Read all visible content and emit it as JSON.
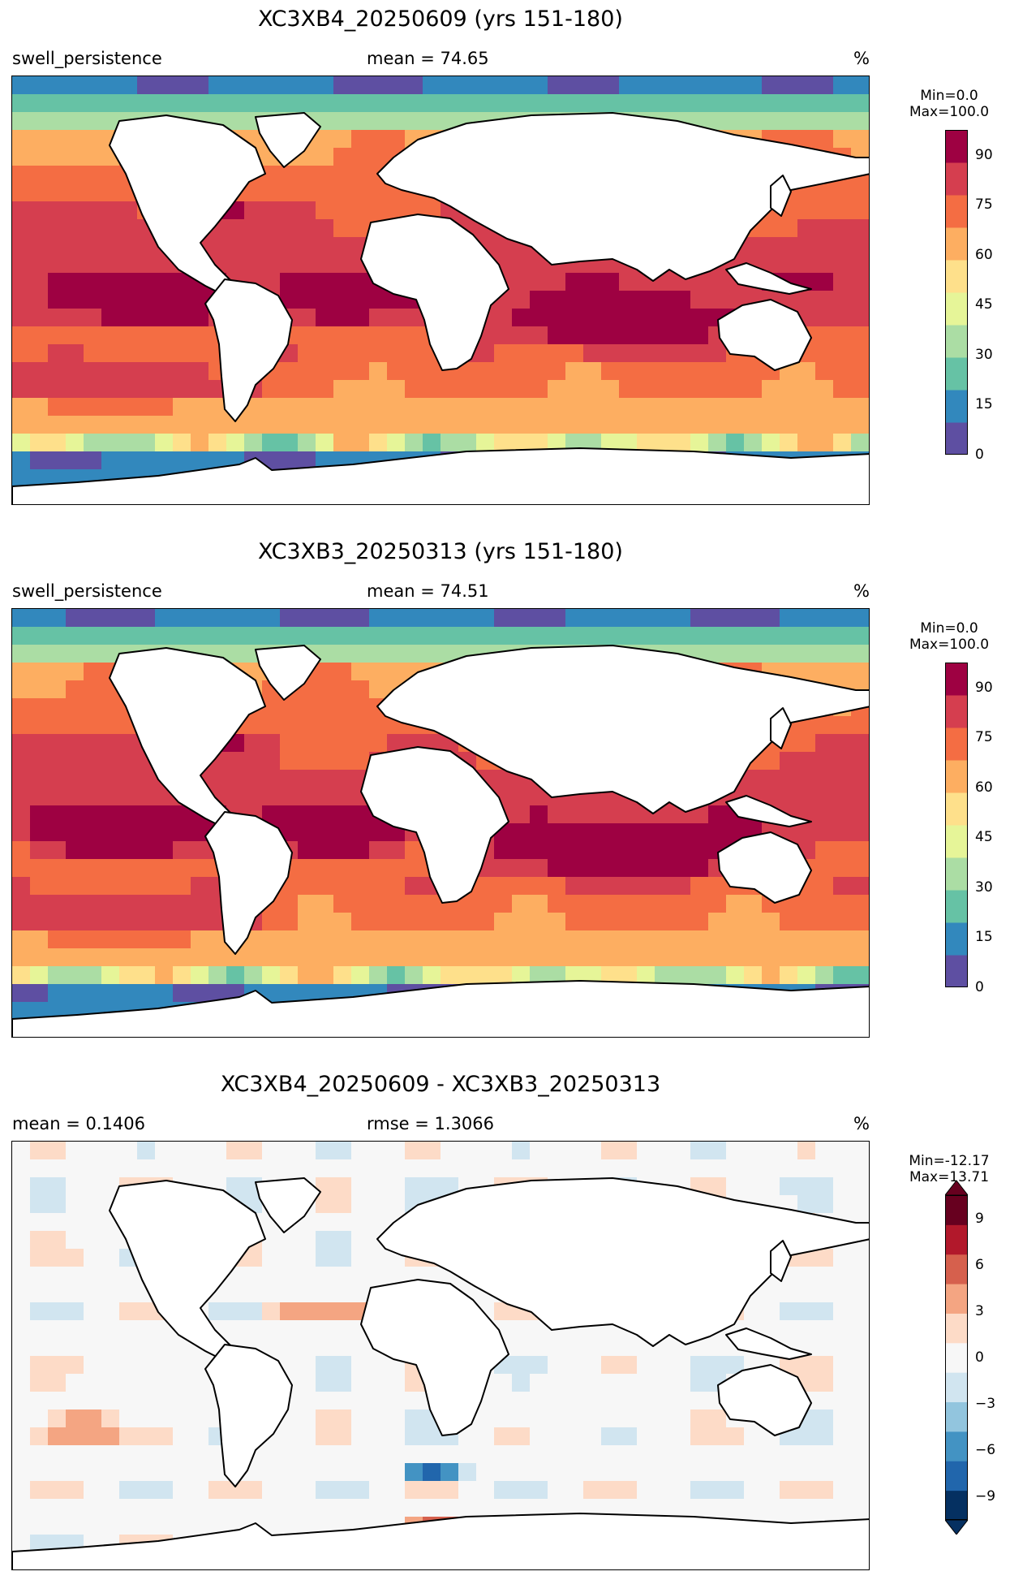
{
  "panels": [
    {
      "title": "XC3XB4_20250609 (yrs 151-180)",
      "left_label": "swell_persistence",
      "mid_label": "mean = 74.65",
      "right_label": "%",
      "colorbar": {
        "min_label": "Min=0.0",
        "max_label": "Max=100.0",
        "ticks": [
          "0",
          "15",
          "30",
          "45",
          "60",
          "75",
          "90"
        ],
        "cmap": "spectral"
      }
    },
    {
      "title": "XC3XB3_20250313 (yrs 151-180)",
      "left_label": "swell_persistence",
      "mid_label": "mean = 74.51",
      "right_label": "%",
      "colorbar": {
        "min_label": "Min=0.0",
        "max_label": "Max=100.0",
        "ticks": [
          "0",
          "15",
          "30",
          "45",
          "60",
          "75",
          "90"
        ],
        "cmap": "spectral"
      }
    },
    {
      "title": "XC3XB4_20250609 - XC3XB3_20250313",
      "left_label": "mean = 0.1406",
      "mid_label": "rmse = 1.3066",
      "right_label": "%",
      "colorbar": {
        "min_label": "Min=-12.17",
        "max_label": "Max=13.71",
        "ticks": [
          "−9",
          "−6",
          "−3",
          "0",
          "3",
          "6",
          "9"
        ],
        "cmap": "rdbu"
      }
    }
  ],
  "colors": {
    "spectral": [
      "#5e4fa2",
      "#3288bd",
      "#66c2a5",
      "#abdda4",
      "#e6f598",
      "#fee08b",
      "#fdae61",
      "#f46d43",
      "#d53e4f",
      "#9e0142"
    ],
    "rdbu": [
      "#053061",
      "#2166ac",
      "#4393c3",
      "#92c5de",
      "#d1e5f0",
      "#f7f7f7",
      "#fddbc7",
      "#f4a582",
      "#d6604d",
      "#b2182b",
      "#67001f"
    ]
  }
}
